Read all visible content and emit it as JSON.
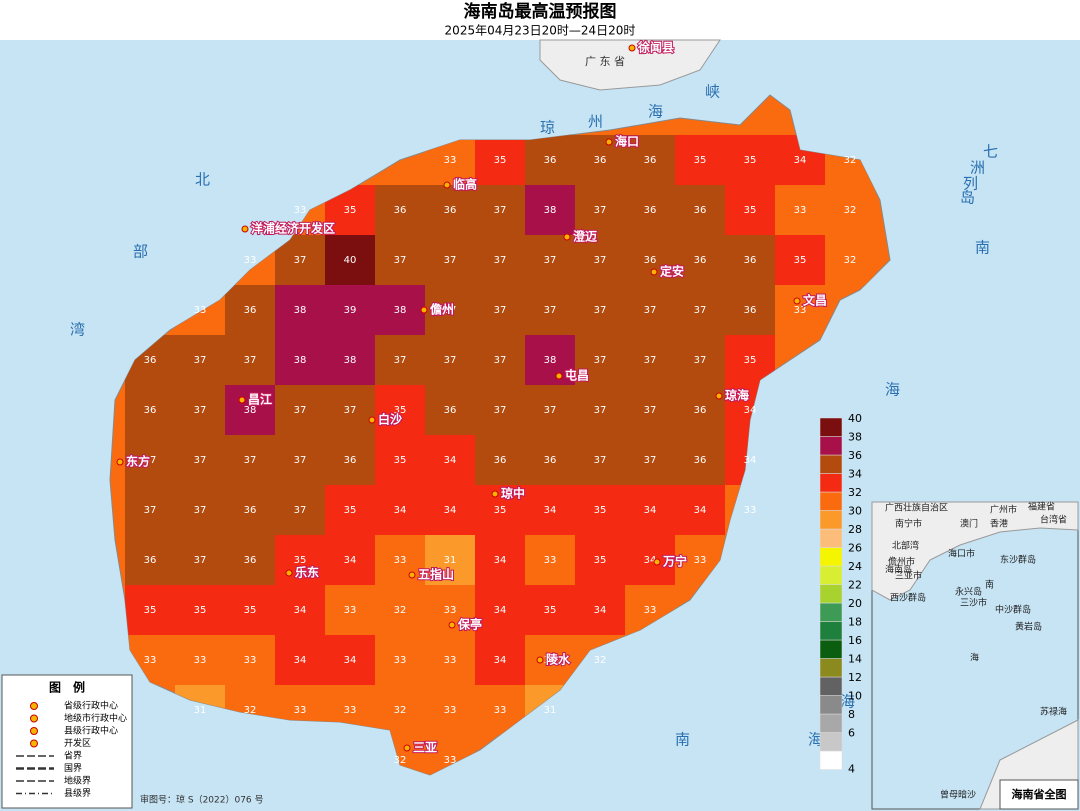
{
  "header": {
    "title": "海南岛最高温预报图",
    "subtitle": "2025年04月23日20时—24日20时"
  },
  "map": {
    "places": [
      "海口",
      "临高",
      "洋浦经济开发区",
      "澄迈",
      "定安",
      "儋州",
      "文昌",
      "屯昌",
      "琼海",
      "昌江",
      "白沙",
      "东方",
      "琼中",
      "乐东",
      "五指山",
      "万宁",
      "保亭",
      "陵水",
      "三亚",
      "徐闻县"
    ],
    "region_label": "广 东 省",
    "sea_labels": [
      "琼",
      "州",
      "海",
      "峡",
      "北",
      "部",
      "湾",
      "南",
      "海",
      "海",
      "南",
      "海",
      "七",
      "洲",
      "列",
      "岛"
    ],
    "grid": [
      [
        null,
        null,
        null,
        null,
        null,
        null,
        33,
        35,
        36,
        36,
        36,
        35,
        35,
        34,
        32
      ],
      [
        null,
        null,
        null,
        33,
        35,
        36,
        36,
        37,
        38,
        37,
        36,
        36,
        35,
        33,
        32
      ],
      [
        null,
        null,
        33,
        37,
        40,
        37,
        37,
        37,
        37,
        37,
        36,
        36,
        36,
        35,
        32
      ],
      [
        null,
        33,
        36,
        38,
        39,
        38,
        37,
        37,
        37,
        37,
        37,
        37,
        36,
        33,
        null
      ],
      [
        36,
        37,
        37,
        38,
        38,
        37,
        37,
        37,
        38,
        37,
        37,
        37,
        35,
        null,
        null
      ],
      [
        36,
        37,
        38,
        37,
        37,
        35,
        36,
        37,
        37,
        37,
        37,
        36,
        34,
        null,
        null
      ],
      [
        37,
        37,
        37,
        37,
        36,
        35,
        34,
        36,
        36,
        37,
        37,
        36,
        34,
        null,
        null
      ],
      [
        37,
        37,
        36,
        37,
        35,
        34,
        34,
        35,
        34,
        35,
        34,
        34,
        33,
        null,
        null
      ],
      [
        36,
        37,
        36,
        35,
        34,
        33,
        31,
        34,
        33,
        35,
        34,
        33,
        null,
        null,
        null
      ],
      [
        35,
        35,
        35,
        34,
        33,
        32,
        33,
        34,
        35,
        34,
        33,
        null,
        null,
        null,
        null
      ],
      [
        33,
        33,
        33,
        34,
        34,
        33,
        33,
        34,
        33,
        32,
        null,
        null,
        null,
        null,
        null
      ],
      [
        null,
        31,
        32,
        33,
        33,
        32,
        33,
        33,
        31,
        null,
        null,
        null,
        null,
        null,
        null
      ],
      [
        null,
        null,
        null,
        null,
        null,
        32,
        33,
        null,
        null,
        null,
        null,
        null,
        null,
        null,
        null
      ]
    ]
  },
  "scale": {
    "ticks": [
      4,
      6,
      8,
      10,
      12,
      14,
      16,
      18,
      20,
      22,
      24,
      26,
      28,
      30,
      32,
      34,
      36,
      38,
      40
    ],
    "colors": [
      "#ffffff",
      "#c8c8c8",
      "#a8a8a8",
      "#8a8a8a",
      "#626262",
      "#8b8a1f",
      "#0b5e10",
      "#1f7f3c",
      "#3e9b56",
      "#a8d32e",
      "#d7ee32",
      "#f5f500",
      "#fdbd7a",
      "#fb9a2a",
      "#fa6b0f",
      "#f52a13",
      "#b34a0e",
      "#a8104a",
      "#7b0e0e"
    ]
  },
  "legend": {
    "title": "图　例",
    "items": [
      "省级行政中心",
      "地级市行政中心",
      "县级行政中心",
      "开发区",
      "省界",
      "国界",
      "地级界",
      "县级界"
    ]
  },
  "approval": "审图号：琼 S（2022）076 号",
  "inset": {
    "title": "海南省全图",
    "labels": [
      "广西壮族自治区",
      "南宁市",
      "广州市",
      "澳门",
      "香港",
      "福建省",
      "台湾省",
      "北部湾",
      "海口市",
      "儋州市",
      "三亚市",
      "海南岛",
      "东沙群岛",
      "西沙群岛",
      "永兴岛",
      "三沙市",
      "中沙群岛",
      "黄岩岛",
      "南",
      "海",
      "苏禄海",
      "曾母暗沙"
    ]
  }
}
